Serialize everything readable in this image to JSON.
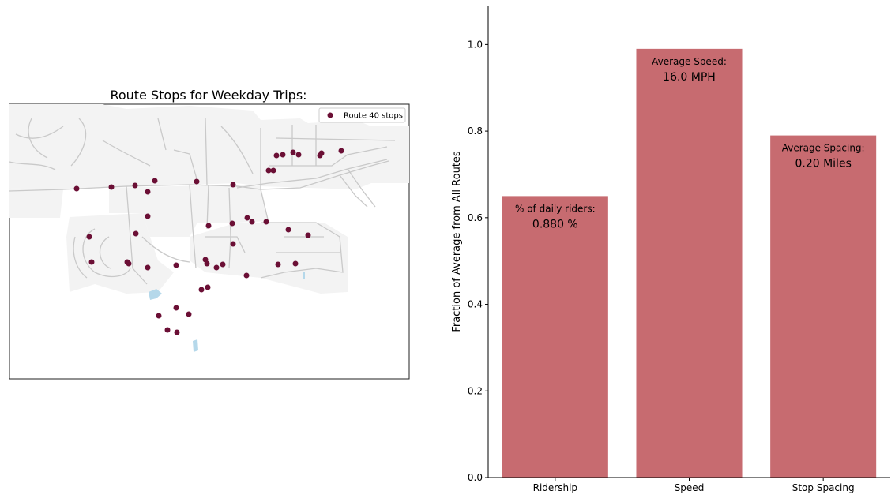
{
  "map": {
    "title": "Route Stops for Weekday Trips:",
    "legend_label": "Route 40 stops",
    "colors": {
      "stop": "#6b0f35",
      "street": "#c9c9c9",
      "land": "#f3f3f3",
      "water": "#b5d8ea",
      "frame": "#222222"
    }
  },
  "chart_data": {
    "type": "bar",
    "title": "",
    "xlabel": "",
    "ylabel": "Fraction of Average from All Routes",
    "categories": [
      "Ridership",
      "Speed",
      "Stop Spacing"
    ],
    "values": [
      0.65,
      0.99,
      0.79
    ],
    "ylim": [
      0,
      1.09
    ],
    "yticks": [
      "0.0",
      "0.2",
      "0.4",
      "0.6",
      "0.8",
      "1.0"
    ],
    "bar_color": "#c76b70",
    "grid": false,
    "annotations": [
      {
        "label": "% of daily riders:",
        "value": "0.880 %"
      },
      {
        "label": "Average Speed:",
        "value": "16.0 MPH"
      },
      {
        "label": "Average Spacing:",
        "value": "0.20 Miles"
      }
    ]
  }
}
